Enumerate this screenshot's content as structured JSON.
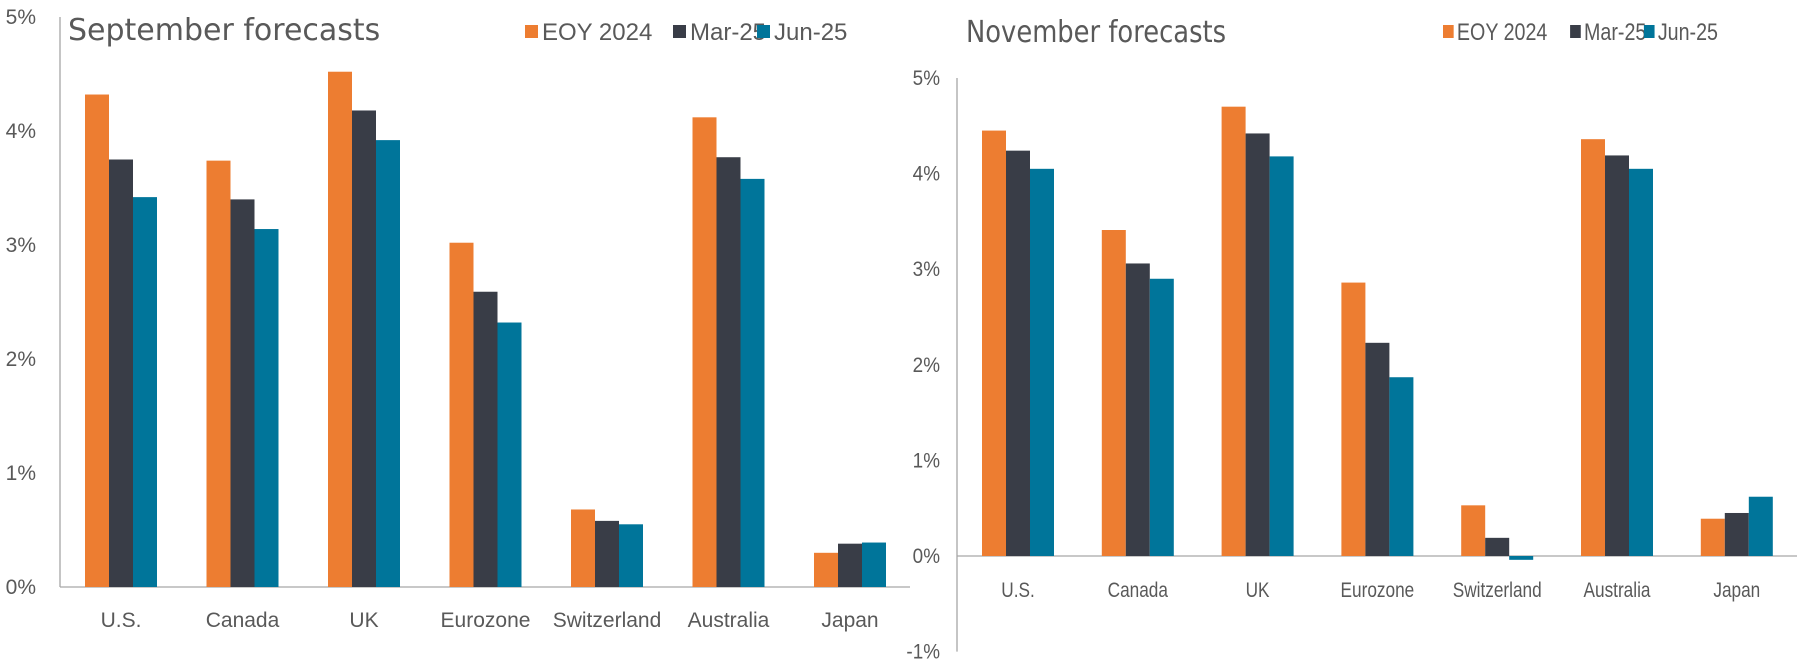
{
  "colors": {
    "EOY 2024": "#ED7D31",
    "Mar-25": "#393D47",
    "Jun-25": "#00759A",
    "text": "#595959",
    "axis": "#A6A6A6"
  },
  "chart_data": [
    {
      "type": "bar",
      "title": "September forecasts",
      "xlabel": "",
      "ylabel": "",
      "categories": [
        "U.S.",
        "Canada",
        "UK",
        "Eurozone",
        "Switzerland",
        "Australia",
        "Japan"
      ],
      "series": [
        {
          "name": "EOY 2024",
          "values": [
            4.32,
            3.74,
            4.52,
            3.02,
            0.68,
            4.12,
            0.3
          ]
        },
        {
          "name": "Mar-25",
          "values": [
            3.75,
            3.4,
            4.18,
            2.59,
            0.58,
            3.77,
            0.38
          ]
        },
        {
          "name": "Jun-25",
          "values": [
            3.42,
            3.14,
            3.92,
            2.32,
            0.55,
            3.58,
            0.39
          ]
        }
      ],
      "ylim": [
        0,
        5
      ],
      "yticks": [
        "0%",
        "1%",
        "2%",
        "3%",
        "4%",
        "5%"
      ],
      "ytick_values": [
        0,
        1,
        2,
        3,
        4,
        5
      ],
      "grid": false,
      "legend_position": "top-right"
    },
    {
      "type": "bar",
      "title": "November forecasts",
      "xlabel": "",
      "ylabel": "",
      "categories": [
        "U.S.",
        "Canada",
        "UK",
        "Eurozone",
        "Switzerland",
        "Australia",
        "Japan"
      ],
      "series": [
        {
          "name": "EOY 2024",
          "values": [
            4.45,
            3.41,
            4.7,
            2.86,
            0.53,
            4.36,
            0.39
          ]
        },
        {
          "name": "Mar-25",
          "values": [
            4.24,
            3.06,
            4.42,
            2.23,
            0.19,
            4.19,
            0.45
          ]
        },
        {
          "name": "Jun-25",
          "values": [
            4.05,
            2.9,
            4.18,
            1.87,
            -0.04,
            4.05,
            0.62
          ]
        }
      ],
      "ylim": [
        -1,
        5
      ],
      "yticks": [
        "-1%",
        "0%",
        "1%",
        "2%",
        "3%",
        "4%",
        "5%"
      ],
      "ytick_values": [
        -1,
        0,
        1,
        2,
        3,
        4,
        5
      ],
      "grid": false,
      "legend_position": "top-right"
    }
  ]
}
